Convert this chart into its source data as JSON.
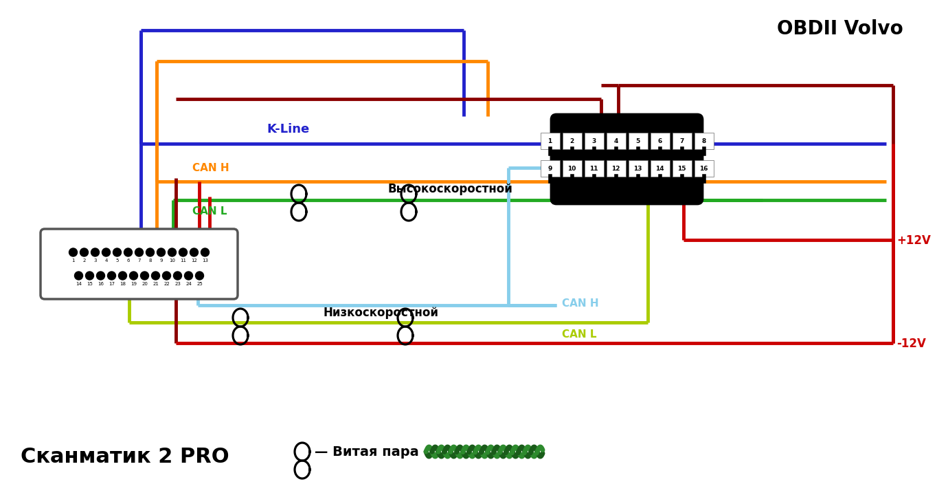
{
  "title_obdii": "OBDII Volvo",
  "title_scanmatik": "Сканматик 2 PRO",
  "legend_text": "— Витая пара",
  "label_kline": "K-Line",
  "label_canh_hi": "CAN H",
  "label_canl_hi": "CAN L",
  "label_canh_lo": "CAN H",
  "label_canl_lo": "CAN L",
  "label_high": "Высокоскоростной",
  "label_low": "Низкоскоростной",
  "label_plus12": "+12V",
  "label_minus12": "-12V",
  "colors": {
    "blue": "#2222CC",
    "orange": "#FF8800",
    "green": "#22AA22",
    "red": "#CC0000",
    "darkred": "#8B0000",
    "cyan": "#87CEEB",
    "ygreen": "#AACC00",
    "black": "#000000",
    "white": "#FFFFFF",
    "bg": "#FFFFFF"
  },
  "obdii_pins_top": [
    "1",
    "2",
    "3",
    "4",
    "5",
    "6",
    "7",
    "8"
  ],
  "obdii_pins_bot": [
    "9",
    "10",
    "11",
    "12",
    "13",
    "14",
    "15",
    "16"
  ],
  "db25_top": [
    "1",
    "2",
    "3",
    "4",
    "5",
    "6",
    "7",
    "8",
    "9",
    "10",
    "11",
    "12",
    "13"
  ],
  "db25_bot": [
    "14",
    "15",
    "16",
    "17",
    "18",
    "19",
    "20",
    "21",
    "22",
    "23",
    "24",
    "25"
  ]
}
